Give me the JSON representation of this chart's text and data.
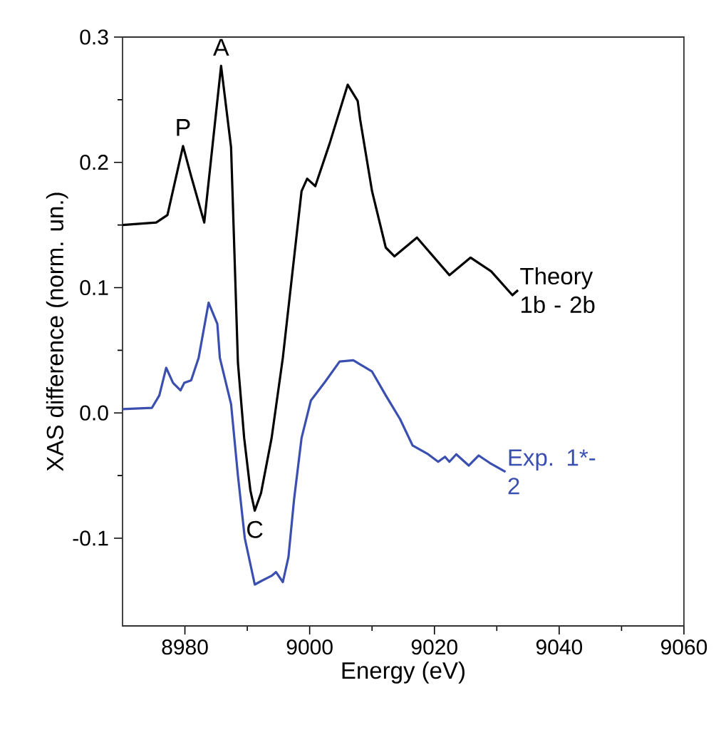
{
  "chart_data": {
    "type": "line",
    "xlabel": "Energy (eV)",
    "ylabel": "XAS difference (norm. un.)",
    "xlim": [
      8970,
      9060
    ],
    "ylim": [
      -0.17,
      0.3
    ],
    "xticks": [
      8980,
      9000,
      9020,
      9040,
      9060
    ],
    "yticks": [
      -0.1,
      {
        "value": 0,
        "label": "0.0"
      },
      0.1,
      0.2,
      0.3
    ],
    "grid": false,
    "legend": false,
    "marker": "none",
    "line_style": "solid",
    "series": [
      {
        "name": "Theory 1b - 2b",
        "color": "#000000",
        "x": [
          8970,
          8975.4,
          8977.2,
          8979.7,
          8981,
          8983.1,
          8985.8,
          8987.4,
          8988.5,
          8989.5,
          8990.5,
          8991.2,
          8992.2,
          8993.9,
          8995.7,
          8998.7,
          8999.6,
          9000.9,
          9003.2,
          9006.1,
          9007.7,
          9008.1,
          9010,
          9012.2,
          9013.6,
          9017.2,
          9022.4,
          9025.8,
          9029.1,
          9032.5,
          9033.4
        ],
        "values": [
          0.15,
          0.152,
          0.158,
          0.213,
          0.189,
          0.152,
          0.277,
          0.212,
          0.04,
          -0.02,
          -0.062,
          -0.078,
          -0.064,
          -0.02,
          0.044,
          0.177,
          0.187,
          0.181,
          0.215,
          0.262,
          0.249,
          0.234,
          0.177,
          0.132,
          0.125,
          0.14,
          0.11,
          0.124,
          0.113,
          0.094,
          0.098
        ]
      },
      {
        "name": "Exp. 1*- 2",
        "color": "#3b4fb0",
        "x": [
          8970,
          8974.7,
          8975.9,
          8977,
          8978.1,
          8979.3,
          8979.9,
          8981,
          8982.2,
          8983.8,
          8985.2,
          8985.6,
          8987.4,
          8988.5,
          8989.6,
          8991.2,
          8992.3,
          8993.9,
          8994.6,
          8995.7,
          8996.6,
          8997.5,
          8998.7,
          9000.2,
          9002.5,
          9004.8,
          9007,
          9010,
          9012.2,
          9014.5,
          9016.5,
          9019,
          9020.6,
          9021.7,
          9022.4,
          9023.5,
          9025.5,
          9027.1,
          9028.9,
          9031.4
        ],
        "values": [
          0.003,
          0.004,
          0.014,
          0.036,
          0.024,
          0.018,
          0.024,
          0.026,
          0.044,
          0.088,
          0.071,
          0.044,
          0.007,
          -0.05,
          -0.1,
          -0.137,
          -0.134,
          -0.13,
          -0.127,
          -0.135,
          -0.115,
          -0.069,
          -0.02,
          0.01,
          0.025,
          0.041,
          0.042,
          0.033,
          0.014,
          -0.005,
          -0.026,
          -0.033,
          -0.039,
          -0.035,
          -0.039,
          -0.033,
          -0.042,
          -0.034,
          -0.04,
          -0.047
        ]
      }
    ],
    "annotations": [
      {
        "text": "P",
        "x": 8979.7,
        "y": 0.213
      },
      {
        "text": "A",
        "x": 8985.8,
        "y": 0.277
      },
      {
        "text": "C",
        "x": 8991.2,
        "y": -0.078
      }
    ]
  }
}
